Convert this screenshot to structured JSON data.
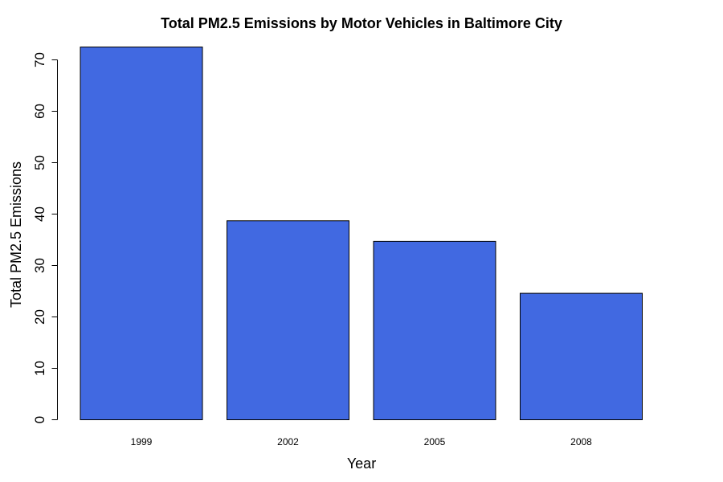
{
  "chart_data": {
    "type": "bar",
    "title": "Total PM2.5 Emissions by Motor Vehicles in Baltimore City",
    "xlabel": "Year",
    "ylabel": "Total PM2.5 Emissions",
    "categories": [
      "1999",
      "2002",
      "2005",
      "2008"
    ],
    "values": [
      72.5,
      38.7,
      34.7,
      24.6
    ],
    "ylim": [
      0,
      70
    ],
    "yticks": [
      0,
      10,
      20,
      30,
      40,
      50,
      60,
      70
    ],
    "bar_color": "#4169E1",
    "grid": false,
    "legend": "none"
  }
}
